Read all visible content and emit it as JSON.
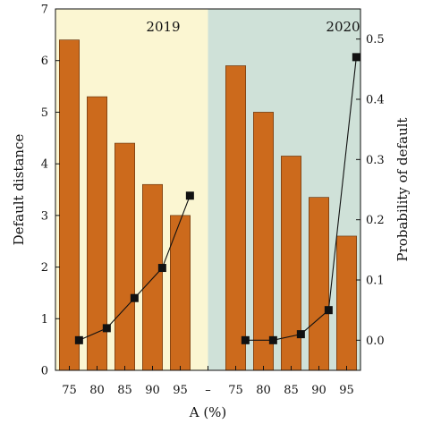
{
  "chart_data": {
    "type": "bar",
    "categories": [
      "75",
      "80",
      "85",
      "90",
      "95",
      "–",
      "75",
      "80",
      "85",
      "90",
      "95"
    ],
    "xlabel": "A (%)",
    "ylabel": "Default distance",
    "y2label": "Probability of default",
    "ylim": [
      0,
      7
    ],
    "y2lim": [
      -0.05,
      0.55
    ],
    "yticks": [
      0,
      1,
      2,
      3,
      4,
      5,
      6,
      7
    ],
    "y2ticks": [
      "0.0",
      "0.1",
      "0.2",
      "0.3",
      "0.4",
      "0.5"
    ],
    "periods": [
      {
        "label": "2019",
        "background": "#fbf6d2"
      },
      {
        "label": "2020",
        "background": "#cfe1d8"
      }
    ],
    "series": [
      {
        "type": "bar",
        "axis": "left",
        "color": "#cc6a1c",
        "values": [
          6.4,
          5.3,
          4.4,
          3.6,
          3.0,
          null,
          5.9,
          5.0,
          4.15,
          3.35,
          2.6
        ]
      },
      {
        "type": "line",
        "axis": "right",
        "marker": "square",
        "color": "#111111",
        "values": [
          0.0,
          0.02,
          0.07,
          0.12,
          0.24,
          null,
          0.0,
          0.0,
          0.01,
          0.05,
          0.47
        ]
      }
    ],
    "grid": false,
    "legend": "none"
  }
}
